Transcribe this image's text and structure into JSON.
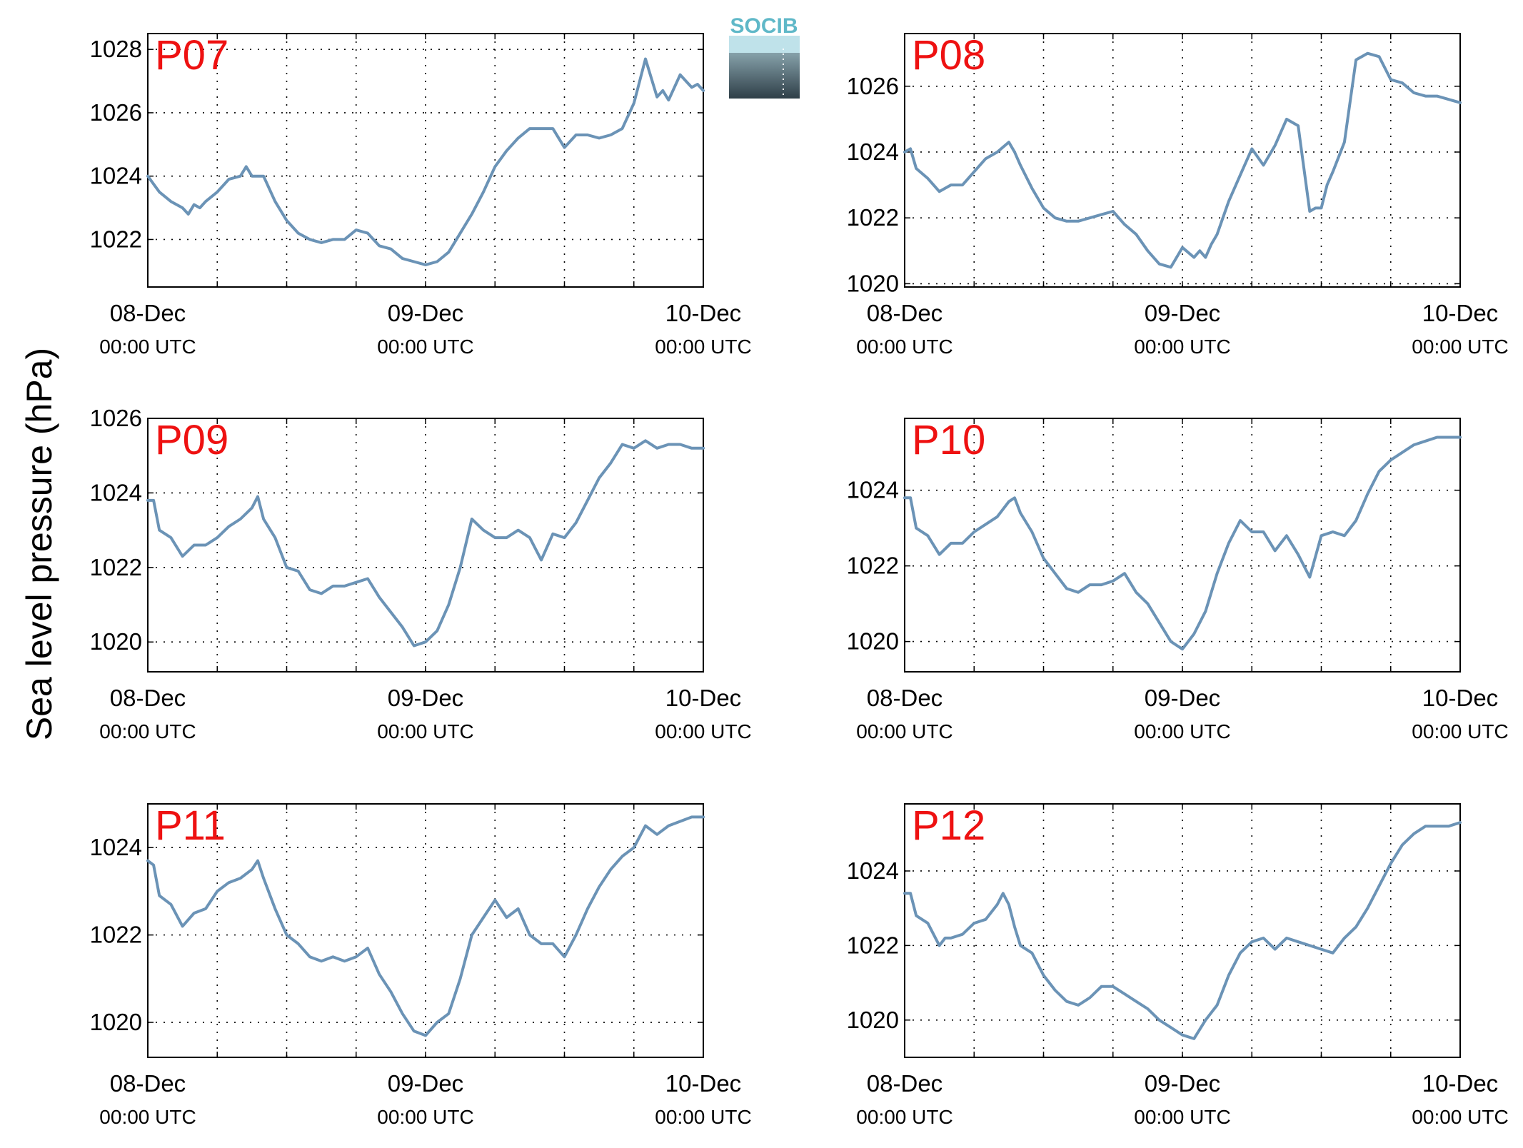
{
  "ylabel": "Sea level pressure (hPa)",
  "logo": {
    "text": "SOCIB",
    "top_color": "#5fb8c8",
    "bottom_color": "#2f3f48"
  },
  "colors": {
    "line": "#6b93b6",
    "station_label": "#ee1111",
    "grid": "#000000"
  },
  "x_ticks": [
    {
      "day": "08-Dec",
      "time": "00:00 UTC"
    },
    {
      "day": "09-Dec",
      "time": "00:00 UTC"
    },
    {
      "day": "10-Dec",
      "time": "00:00 UTC"
    }
  ],
  "chart_data": [
    {
      "type": "line",
      "label": "P07",
      "x_unit": "hours since 08-Dec 00:00 UTC",
      "xlim": [
        0,
        48
      ],
      "ylim": [
        1020.5,
        1028.5
      ],
      "yticks": [
        1022,
        1024,
        1026,
        1028
      ],
      "x": [
        0,
        1,
        2,
        3,
        3.5,
        4,
        4.5,
        5,
        6,
        7,
        8,
        8.5,
        9,
        10,
        11,
        12,
        13,
        14,
        15,
        16,
        17,
        18,
        19,
        20,
        21,
        22,
        23,
        24,
        25,
        26,
        27,
        28,
        29,
        30,
        31,
        32,
        33,
        34,
        35,
        36,
        37,
        38,
        39,
        40,
        41,
        42,
        43,
        44,
        44.5,
        45,
        45.5,
        46,
        46.5,
        47,
        47.5,
        48
      ],
      "y": [
        1024.0,
        1023.5,
        1023.2,
        1023.0,
        1022.8,
        1023.1,
        1023.0,
        1023.2,
        1023.5,
        1023.9,
        1024.0,
        1024.3,
        1024.0,
        1024.0,
        1023.2,
        1022.6,
        1022.2,
        1022.0,
        1021.9,
        1022.0,
        1022.0,
        1022.3,
        1022.2,
        1021.8,
        1021.7,
        1021.4,
        1021.3,
        1021.2,
        1021.3,
        1021.6,
        1022.2,
        1022.8,
        1023.5,
        1024.3,
        1024.8,
        1025.2,
        1025.5,
        1025.5,
        1025.5,
        1024.9,
        1025.3,
        1025.3,
        1025.2,
        1025.3,
        1025.5,
        1026.3,
        1027.7,
        1026.5,
        1026.7,
        1026.4,
        1026.8,
        1027.2,
        1027.0,
        1026.8,
        1026.9,
        1026.7
      ]
    },
    {
      "type": "line",
      "label": "P08",
      "x_unit": "hours since 08-Dec 00:00 UTC",
      "xlim": [
        0,
        48
      ],
      "ylim": [
        1019.9,
        1027.6
      ],
      "yticks": [
        1020,
        1022,
        1024,
        1026
      ],
      "x": [
        0,
        0.5,
        1,
        2,
        3,
        4,
        5,
        6,
        7,
        8,
        9,
        9.5,
        10,
        11,
        12,
        13,
        14,
        15,
        16,
        17,
        18,
        19,
        20,
        21,
        22,
        23,
        24,
        25,
        25.5,
        26,
        26.5,
        27,
        28,
        29,
        30,
        31,
        32,
        33,
        34,
        35,
        35.5,
        36,
        36.5,
        37,
        38,
        39,
        40,
        41,
        42,
        43,
        44,
        45,
        46,
        47,
        48
      ],
      "y": [
        1024.0,
        1024.1,
        1023.5,
        1023.2,
        1022.8,
        1023.0,
        1023.0,
        1023.4,
        1023.8,
        1024.0,
        1024.3,
        1024.0,
        1023.6,
        1022.9,
        1022.3,
        1022.0,
        1021.9,
        1021.9,
        1022.0,
        1022.1,
        1022.2,
        1021.8,
        1021.5,
        1021.0,
        1020.6,
        1020.5,
        1021.1,
        1020.8,
        1021.0,
        1020.8,
        1021.2,
        1021.5,
        1022.5,
        1023.3,
        1024.1,
        1023.6,
        1024.2,
        1025.0,
        1024.8,
        1022.2,
        1022.3,
        1022.3,
        1023.0,
        1023.4,
        1024.3,
        1026.8,
        1027.0,
        1026.9,
        1026.2,
        1026.1,
        1025.8,
        1025.7,
        1025.7,
        1025.6,
        1025.5
      ]
    },
    {
      "type": "line",
      "label": "P09",
      "x_unit": "hours since 08-Dec 00:00 UTC",
      "xlim": [
        0,
        48
      ],
      "ylim": [
        1019.2,
        1026.0
      ],
      "yticks": [
        1020,
        1022,
        1024,
        1026
      ],
      "x": [
        0,
        0.5,
        1,
        2,
        3,
        4,
        5,
        6,
        7,
        8,
        9,
        9.5,
        10,
        11,
        12,
        13,
        14,
        15,
        16,
        17,
        18,
        19,
        20,
        21,
        22,
        23,
        24,
        25,
        26,
        27,
        28,
        29,
        30,
        31,
        32,
        33,
        34,
        35,
        36,
        37,
        38,
        39,
        40,
        41,
        42,
        43,
        44,
        45,
        46,
        47,
        48
      ],
      "y": [
        1023.8,
        1023.8,
        1023.0,
        1022.8,
        1022.3,
        1022.6,
        1022.6,
        1022.8,
        1023.1,
        1023.3,
        1023.6,
        1023.9,
        1023.3,
        1022.8,
        1022.0,
        1021.9,
        1021.4,
        1021.3,
        1021.5,
        1021.5,
        1021.6,
        1021.7,
        1021.2,
        1020.8,
        1020.4,
        1019.9,
        1020.0,
        1020.3,
        1021.0,
        1022.0,
        1023.3,
        1023.0,
        1022.8,
        1022.8,
        1023.0,
        1022.8,
        1022.2,
        1022.9,
        1022.8,
        1023.2,
        1023.8,
        1024.4,
        1024.8,
        1025.3,
        1025.2,
        1025.4,
        1025.2,
        1025.3,
        1025.3,
        1025.2,
        1025.2
      ]
    },
    {
      "type": "line",
      "label": "P10",
      "x_unit": "hours since 08-Dec 00:00 UTC",
      "xlim": [
        0,
        48
      ],
      "ylim": [
        1019.2,
        1025.9
      ],
      "yticks": [
        1020,
        1022,
        1024
      ],
      "x": [
        0,
        0.5,
        1,
        2,
        3,
        4,
        5,
        6,
        7,
        8,
        9,
        9.5,
        10,
        11,
        12,
        13,
        14,
        15,
        16,
        17,
        18,
        19,
        20,
        21,
        22,
        23,
        24,
        25,
        26,
        27,
        28,
        29,
        30,
        31,
        32,
        33,
        34,
        35,
        36,
        37,
        38,
        39,
        40,
        41,
        42,
        43,
        44,
        45,
        46,
        47,
        48
      ],
      "y": [
        1023.8,
        1023.8,
        1023.0,
        1022.8,
        1022.3,
        1022.6,
        1022.6,
        1022.9,
        1023.1,
        1023.3,
        1023.7,
        1023.8,
        1023.4,
        1022.9,
        1022.2,
        1021.8,
        1021.4,
        1021.3,
        1021.5,
        1021.5,
        1021.6,
        1021.8,
        1021.3,
        1021.0,
        1020.5,
        1020.0,
        1019.8,
        1020.2,
        1020.8,
        1021.8,
        1022.6,
        1023.2,
        1022.9,
        1022.9,
        1022.4,
        1022.8,
        1022.3,
        1021.7,
        1022.8,
        1022.9,
        1022.8,
        1023.2,
        1023.9,
        1024.5,
        1024.8,
        1025.0,
        1025.2,
        1025.3,
        1025.4,
        1025.4,
        1025.4
      ]
    },
    {
      "type": "line",
      "label": "P11",
      "x_unit": "hours since 08-Dec 00:00 UTC",
      "xlim": [
        0,
        48
      ],
      "ylim": [
        1019.2,
        1025.0
      ],
      "yticks": [
        1020,
        1022,
        1024
      ],
      "x": [
        0,
        0.5,
        1,
        2,
        3,
        4,
        5,
        6,
        7,
        8,
        9,
        9.5,
        10,
        11,
        12,
        13,
        14,
        15,
        16,
        17,
        18,
        19,
        20,
        21,
        22,
        23,
        24,
        25,
        26,
        27,
        28,
        29,
        30,
        31,
        32,
        33,
        34,
        35,
        36,
        37,
        38,
        39,
        40,
        41,
        42,
        43,
        44,
        45,
        46,
        47,
        48
      ],
      "y": [
        1023.7,
        1023.6,
        1022.9,
        1022.7,
        1022.2,
        1022.5,
        1022.6,
        1023.0,
        1023.2,
        1023.3,
        1023.5,
        1023.7,
        1023.3,
        1022.6,
        1022.0,
        1021.8,
        1021.5,
        1021.4,
        1021.5,
        1021.4,
        1021.5,
        1021.7,
        1021.1,
        1020.7,
        1020.2,
        1019.8,
        1019.7,
        1020.0,
        1020.2,
        1021.0,
        1022.0,
        1022.4,
        1022.8,
        1022.4,
        1022.6,
        1022.0,
        1021.8,
        1021.8,
        1021.5,
        1022.0,
        1022.6,
        1023.1,
        1023.5,
        1023.8,
        1024.0,
        1024.5,
        1024.3,
        1024.5,
        1024.6,
        1024.7,
        1024.7
      ]
    },
    {
      "type": "line",
      "label": "P12",
      "x_unit": "hours since 08-Dec 00:00 UTC",
      "xlim": [
        0,
        48
      ],
      "ylim": [
        1019.0,
        1025.8
      ],
      "yticks": [
        1020,
        1022,
        1024
      ],
      "x": [
        0,
        0.5,
        1,
        2,
        3,
        3.5,
        4,
        5,
        6,
        7,
        8,
        8.5,
        9,
        9.5,
        10,
        11,
        12,
        13,
        14,
        15,
        16,
        17,
        18,
        19,
        20,
        21,
        22,
        23,
        24,
        25,
        26,
        27,
        28,
        29,
        30,
        31,
        32,
        33,
        34,
        35,
        36,
        37,
        38,
        39,
        40,
        41,
        42,
        43,
        44,
        45,
        46,
        47,
        48
      ],
      "y": [
        1023.4,
        1023.4,
        1022.8,
        1022.6,
        1022.0,
        1022.2,
        1022.2,
        1022.3,
        1022.6,
        1022.7,
        1023.1,
        1023.4,
        1023.1,
        1022.5,
        1022.0,
        1021.8,
        1021.2,
        1020.8,
        1020.5,
        1020.4,
        1020.6,
        1020.9,
        1020.9,
        1020.7,
        1020.5,
        1020.3,
        1020.0,
        1019.8,
        1019.6,
        1019.5,
        1020.0,
        1020.4,
        1021.2,
        1021.8,
        1022.1,
        1022.2,
        1021.9,
        1022.2,
        1022.1,
        1022.0,
        1021.9,
        1021.8,
        1022.2,
        1022.5,
        1023.0,
        1023.6,
        1024.2,
        1024.7,
        1025.0,
        1025.2,
        1025.2,
        1025.2,
        1025.3
      ]
    }
  ]
}
